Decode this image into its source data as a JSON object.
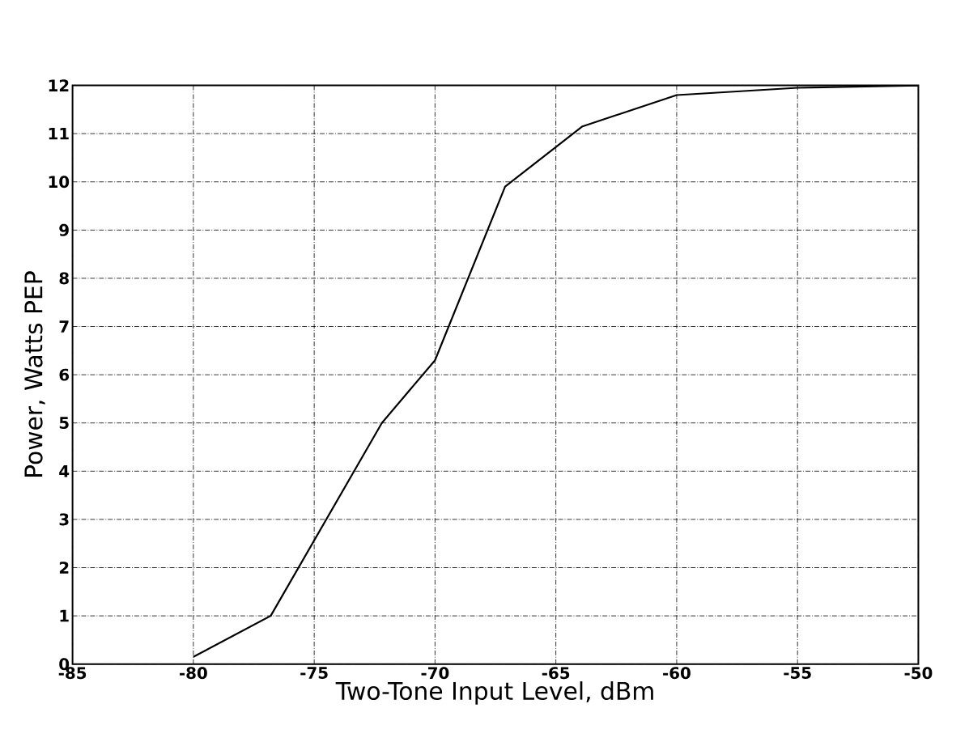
{
  "chart_data": {
    "type": "line",
    "xlabel": "Two-Tone Input Level, dBm",
    "ylabel": "Power, Watts PEP",
    "x": [
      -80,
      -76.8,
      -72.2,
      -70,
      -67.1,
      -63.9,
      -60,
      -55,
      -50
    ],
    "series": [
      {
        "color": "#000000",
        "values": [
          0.15,
          1.0,
          5.0,
          6.3,
          9.9,
          11.15,
          11.8,
          11.95,
          12
        ]
      }
    ],
    "xlim": [
      -85,
      -50
    ],
    "ylim": [
      0,
      12
    ],
    "xticks": [
      -85,
      -80,
      -75,
      -70,
      -65,
      -60,
      -55,
      -50
    ],
    "yticks": [
      0,
      1,
      2,
      3,
      4,
      5,
      6,
      7,
      8,
      9,
      10,
      11,
      12
    ],
    "grid": true,
    "marker": "none",
    "line_style": "solid"
  }
}
